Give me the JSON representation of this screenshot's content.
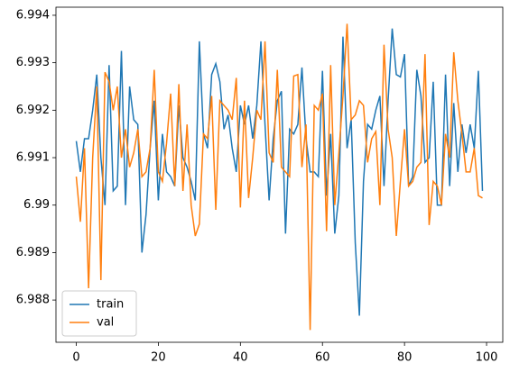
{
  "chart_data": {
    "type": "line",
    "x": [
      0,
      1,
      2,
      3,
      4,
      5,
      6,
      7,
      8,
      9,
      10,
      11,
      12,
      13,
      14,
      15,
      16,
      17,
      18,
      19,
      20,
      21,
      22,
      23,
      24,
      25,
      26,
      27,
      28,
      29,
      30,
      31,
      32,
      33,
      34,
      35,
      36,
      37,
      38,
      39,
      40,
      41,
      42,
      43,
      44,
      45,
      46,
      47,
      48,
      49,
      50,
      51,
      52,
      53,
      54,
      55,
      56,
      57,
      58,
      59,
      60,
      61,
      62,
      63,
      64,
      65,
      66,
      67,
      68,
      69,
      70,
      71,
      72,
      73,
      74,
      75,
      76,
      77,
      78,
      79,
      80,
      81,
      82,
      83,
      84,
      85,
      86,
      87,
      88,
      89,
      90,
      91,
      92,
      93,
      94,
      95,
      96,
      97,
      98,
      99
    ],
    "series": [
      {
        "name": "train",
        "color": "#1f77b4",
        "values": [
          6.99135,
          6.9907,
          6.9914,
          6.9914,
          6.992,
          6.99275,
          6.991,
          6.99,
          6.99295,
          6.9903,
          6.9904,
          6.99325,
          6.99,
          6.9925,
          6.9918,
          6.9917,
          6.989,
          6.9898,
          6.9912,
          6.9922,
          6.9901,
          6.9915,
          6.9907,
          6.9906,
          6.9904,
          6.9921,
          6.991,
          6.9908,
          6.9905,
          6.9901,
          6.99345,
          6.9915,
          6.9912,
          6.99275,
          6.99298,
          6.9926,
          6.9916,
          6.9919,
          6.9912,
          6.9907,
          6.9921,
          6.9917,
          6.9921,
          6.9914,
          6.9921,
          6.99345,
          6.9917,
          6.9901,
          6.9914,
          6.9922,
          6.9924,
          6.9894,
          6.9916,
          6.9915,
          6.9917,
          6.9929,
          6.9914,
          6.9907,
          6.9907,
          6.9906,
          6.99283,
          6.9902,
          6.9915,
          6.9894,
          6.9902,
          6.99355,
          6.9912,
          6.9918,
          6.9892,
          6.98767,
          6.9905,
          6.9917,
          6.9916,
          6.992,
          6.9923,
          6.9904,
          6.9922,
          6.99372,
          6.99275,
          6.9927,
          6.99318,
          6.9904,
          6.9906,
          6.99285,
          6.9923,
          6.9909,
          6.991,
          6.9926,
          6.99,
          6.99,
          6.99275,
          6.9904,
          6.99215,
          6.9907,
          6.9917,
          6.9911,
          6.9917,
          6.9912,
          6.99283,
          6.9903
        ]
      },
      {
        "name": "val",
        "color": "#ff7f0e",
        "values": [
          6.9906,
          6.98965,
          6.9912,
          6.98825,
          6.991,
          6.9925,
          6.98842,
          6.9928,
          6.9926,
          6.992,
          6.9925,
          6.991,
          6.9916,
          6.9908,
          6.9911,
          6.9916,
          6.9906,
          6.9907,
          6.9912,
          6.99285,
          6.9907,
          6.9905,
          6.9913,
          6.99235,
          6.9904,
          6.99255,
          6.9903,
          6.9917,
          6.99,
          6.98935,
          6.9896,
          6.9915,
          6.9914,
          6.9923,
          6.9899,
          6.9922,
          6.9921,
          6.992,
          6.9918,
          6.99268,
          6.98995,
          6.9922,
          6.99015,
          6.991,
          6.992,
          6.9918,
          6.99345,
          6.9911,
          6.9909,
          6.99285,
          6.9908,
          6.9907,
          6.9906,
          6.99272,
          6.99275,
          6.9908,
          6.9917,
          6.98737,
          6.9921,
          6.992,
          6.99235,
          6.98945,
          6.99295,
          6.99,
          6.9911,
          6.9923,
          6.99382,
          6.9918,
          6.9919,
          6.9922,
          6.9921,
          6.9909,
          6.9914,
          6.99155,
          6.99,
          6.99338,
          6.9916,
          6.991,
          6.98935,
          6.9905,
          6.9916,
          6.9904,
          6.9905,
          6.9908,
          6.9909,
          6.99318,
          6.98958,
          6.9905,
          6.9904,
          6.99,
          6.9915,
          6.991,
          6.99322,
          6.9922,
          6.9915,
          6.9907,
          6.9907,
          6.9912,
          6.9902,
          6.99015
        ]
      }
    ],
    "xlim": [
      -4.95,
      103.95
    ],
    "ylim": [
      6.98711,
      6.99417
    ],
    "xticks": [
      0,
      20,
      40,
      60,
      80,
      100
    ],
    "yticks": [
      6.988,
      6.989,
      6.99,
      6.991,
      6.992,
      6.993,
      6.994
    ],
    "legend": "lower left"
  }
}
